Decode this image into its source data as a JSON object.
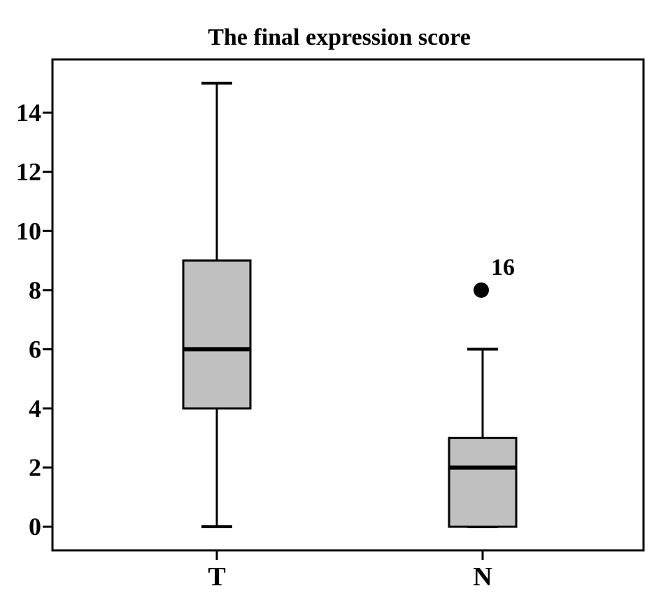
{
  "chart_data": {
    "type": "box",
    "title": "The final expression score",
    "xlabel": "",
    "ylabel": "",
    "ylim": [
      -0.8,
      15.8
    ],
    "yticks": [
      0,
      2,
      4,
      6,
      8,
      10,
      12,
      14
    ],
    "ytick_labels": [
      "0",
      "2",
      "4",
      "6",
      "8",
      "10",
      "12",
      "14"
    ],
    "grid": false,
    "box_color": "#c0c0c0",
    "line_color": "#000000",
    "categories": [
      "T",
      "N"
    ],
    "boxes": [
      {
        "category": "T",
        "whisker_low": 0,
        "q1": 4,
        "median": 6,
        "q3": 9,
        "whisker_high": 15,
        "outliers": []
      },
      {
        "category": "N",
        "whisker_low": 0,
        "q1": 0,
        "median": 2,
        "q3": 3,
        "whisker_high": 6,
        "outliers": [
          {
            "value": 8,
            "label": "16"
          }
        ]
      }
    ]
  }
}
